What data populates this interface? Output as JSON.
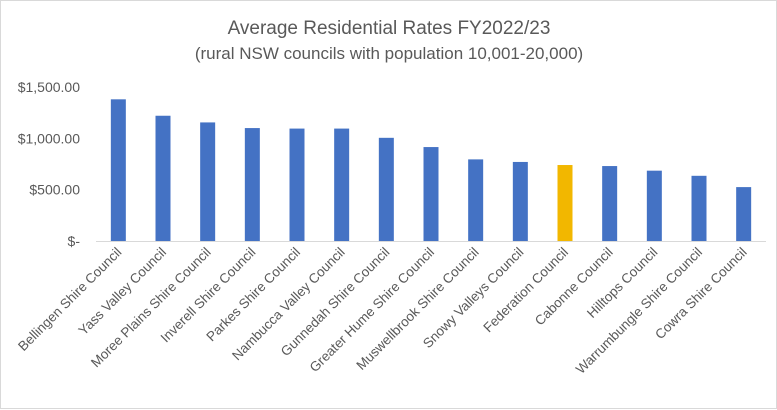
{
  "chart_data": {
    "type": "bar",
    "title": "Average Residential Rates FY2022/23",
    "subtitle": "(rural NSW councils with population 10,001-20,000)",
    "xlabel": "",
    "ylabel": "",
    "ylim": [
      0,
      1500
    ],
    "y_ticks": [
      {
        "value": 0,
        "label": "$-"
      },
      {
        "value": 500,
        "label": "$500.00"
      },
      {
        "value": 1000,
        "label": "$1,000.00"
      },
      {
        "value": 1500,
        "label": "$1,500.00"
      }
    ],
    "grid": false,
    "categories": [
      "Bellingen Shire Council",
      "Yass Valley Council",
      "Moree Plains Shire Council",
      "Inverell Shire Council",
      "Parkes Shire Council",
      "Nambucca Valley Council",
      "Gunnedah Shire Council",
      "Greater Hume Shire Council",
      "Muswellbrook Shire Council",
      "Snowy Valleys Council",
      "Federation Council",
      "Cabonne Council",
      "Hilltops Council",
      "Warrumbungle Shire Council",
      "Cowra Shire Council"
    ],
    "values": [
      1380,
      1220,
      1155,
      1100,
      1095,
      1095,
      1005,
      915,
      795,
      770,
      740,
      730,
      685,
      635,
      525
    ],
    "colors": {
      "default": "#4472C4",
      "highlight": "#F2B700",
      "axis": "#d9d9d9",
      "text": "#595959"
    },
    "highlight_index": 10
  }
}
